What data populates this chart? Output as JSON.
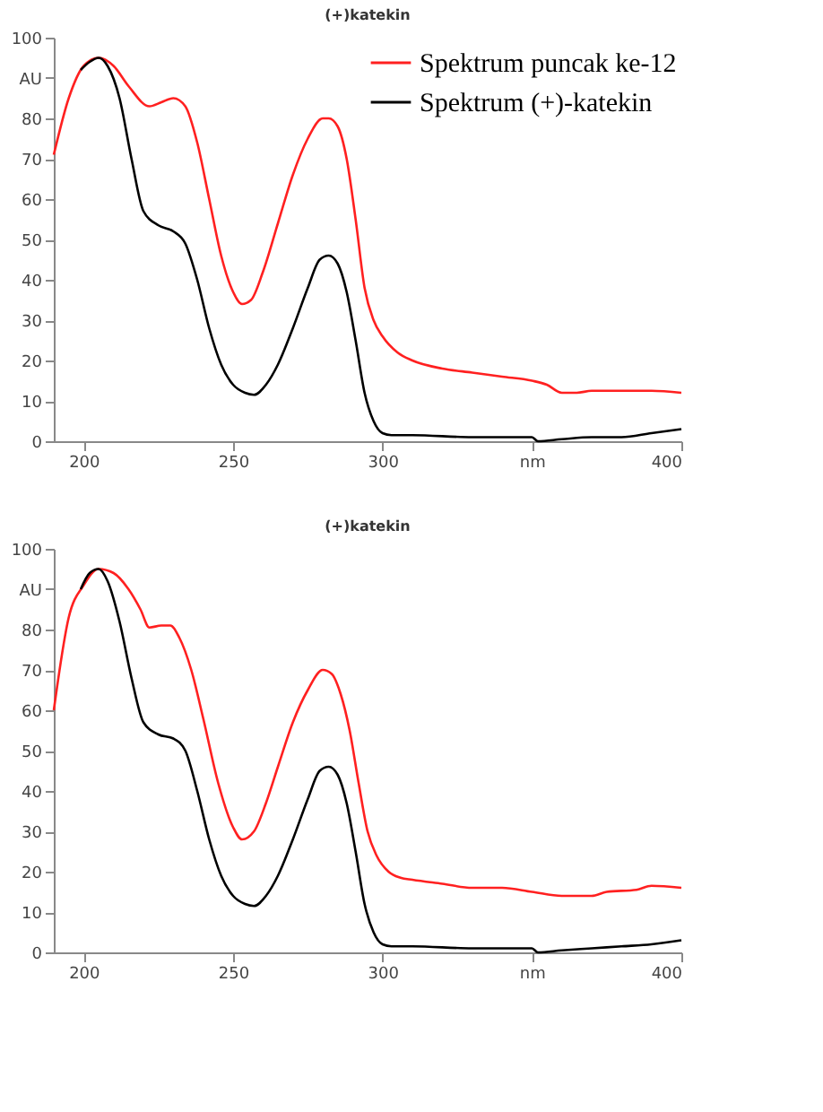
{
  "chart_data": [
    {
      "type": "line",
      "title": "(+)katekin",
      "xlim": [
        190,
        400
      ],
      "ylim": [
        0,
        100
      ],
      "xticks": [
        200,
        250,
        300,
        {
          "value": 350,
          "label": "nm"
        },
        400
      ],
      "yticks": [
        0,
        10,
        20,
        30,
        40,
        50,
        60,
        70,
        80,
        {
          "value": 90,
          "label": "AU"
        },
        100
      ],
      "grid": false,
      "legend": "top right",
      "marker": "none",
      "line_style": "solid",
      "series": [
        {
          "name": "Spektrum puncak ke-12",
          "color": "#ff2020",
          "x": [
            190,
            195,
            200,
            205,
            210,
            215,
            222,
            226,
            230,
            234,
            238,
            242,
            246,
            250,
            253,
            256,
            260,
            265,
            270,
            275,
            280,
            282,
            285,
            288,
            291,
            294,
            297,
            300,
            305,
            310,
            320,
            330,
            340,
            350,
            355,
            360,
            365,
            370,
            380,
            390,
            400
          ],
          "values": [
            71,
            85,
            93,
            95,
            93,
            88,
            83,
            84,
            85,
            83,
            74,
            60,
            46,
            37,
            34,
            35,
            42,
            54,
            66,
            75,
            80,
            80,
            78,
            70,
            55,
            38,
            30,
            26,
            22,
            20,
            18,
            17,
            16,
            15,
            14,
            12,
            12,
            12.5,
            12.5,
            12.5,
            12
          ]
        },
        {
          "name": "Spektrum (+)-katekin",
          "color": "#000000",
          "x": [
            199,
            202,
            205,
            208,
            212,
            216,
            220,
            225,
            230,
            234,
            238,
            242,
            246,
            250,
            254,
            257,
            261,
            265,
            270,
            275,
            279,
            282,
            285,
            288,
            291,
            294,
            297,
            300,
            303,
            310,
            330,
            350,
            352,
            360,
            370,
            380,
            390,
            400
          ],
          "values": [
            92,
            94,
            95,
            93,
            85,
            70,
            57,
            53.5,
            52,
            49,
            40,
            28,
            19,
            14,
            12,
            11.5,
            14,
            19,
            28,
            38,
            45,
            46,
            44,
            37,
            25,
            12,
            5,
            2,
            1.5,
            1.5,
            1,
            1,
            0,
            0.5,
            1,
            1,
            2,
            3
          ]
        }
      ]
    },
    {
      "type": "line",
      "title": "(+)katekin",
      "xlim": [
        190,
        400
      ],
      "ylim": [
        0,
        100
      ],
      "xticks": [
        200,
        250,
        300,
        {
          "value": 350,
          "label": "nm"
        },
        400
      ],
      "yticks": [
        0,
        10,
        20,
        30,
        40,
        50,
        60,
        70,
        80,
        {
          "value": 90,
          "label": "AU"
        },
        100
      ],
      "grid": false,
      "legend": "top right",
      "marker": "none",
      "line_style": "solid",
      "series": [
        {
          "name": "Spektrum puncak ke-12",
          "color": "#ff2020",
          "x": [
            190,
            195,
            200,
            205,
            210,
            215,
            219,
            222,
            226,
            229,
            232,
            236,
            240,
            245,
            250,
            253,
            257,
            261,
            265,
            270,
            275,
            280,
            283,
            286,
            289,
            292,
            295,
            298,
            302,
            306,
            310,
            320,
            330,
            340,
            350,
            360,
            370,
            375,
            385,
            390,
            400
          ],
          "values": [
            60,
            83,
            91,
            95,
            94,
            90,
            85,
            80.5,
            81,
            81,
            78,
            70,
            58,
            42,
            31,
            28,
            30,
            37,
            46,
            57,
            65,
            70,
            69,
            64,
            55,
            42,
            30,
            24,
            20,
            18.5,
            18,
            17,
            16,
            16,
            15,
            14,
            14,
            15,
            15.5,
            16.5,
            16
          ]
        },
        {
          "name": "Spektrum (+)-katekin",
          "color": "#000000",
          "x": [
            199,
            202,
            205,
            208,
            212,
            216,
            220,
            225,
            230,
            234,
            238,
            242,
            246,
            250,
            254,
            257,
            261,
            265,
            270,
            275,
            279,
            282,
            285,
            288,
            291,
            294,
            297,
            300,
            303,
            310,
            330,
            350,
            352,
            360,
            370,
            380,
            390,
            400
          ],
          "values": [
            90,
            94,
            95,
            92,
            82,
            68,
            57,
            54,
            53,
            50,
            40,
            28,
            19,
            14,
            12,
            11.5,
            14,
            19,
            28,
            38,
            45,
            46,
            44,
            37,
            25,
            12,
            5,
            2,
            1.5,
            1.5,
            1,
            1,
            0,
            0.5,
            1,
            1.5,
            2,
            3
          ]
        }
      ]
    }
  ]
}
